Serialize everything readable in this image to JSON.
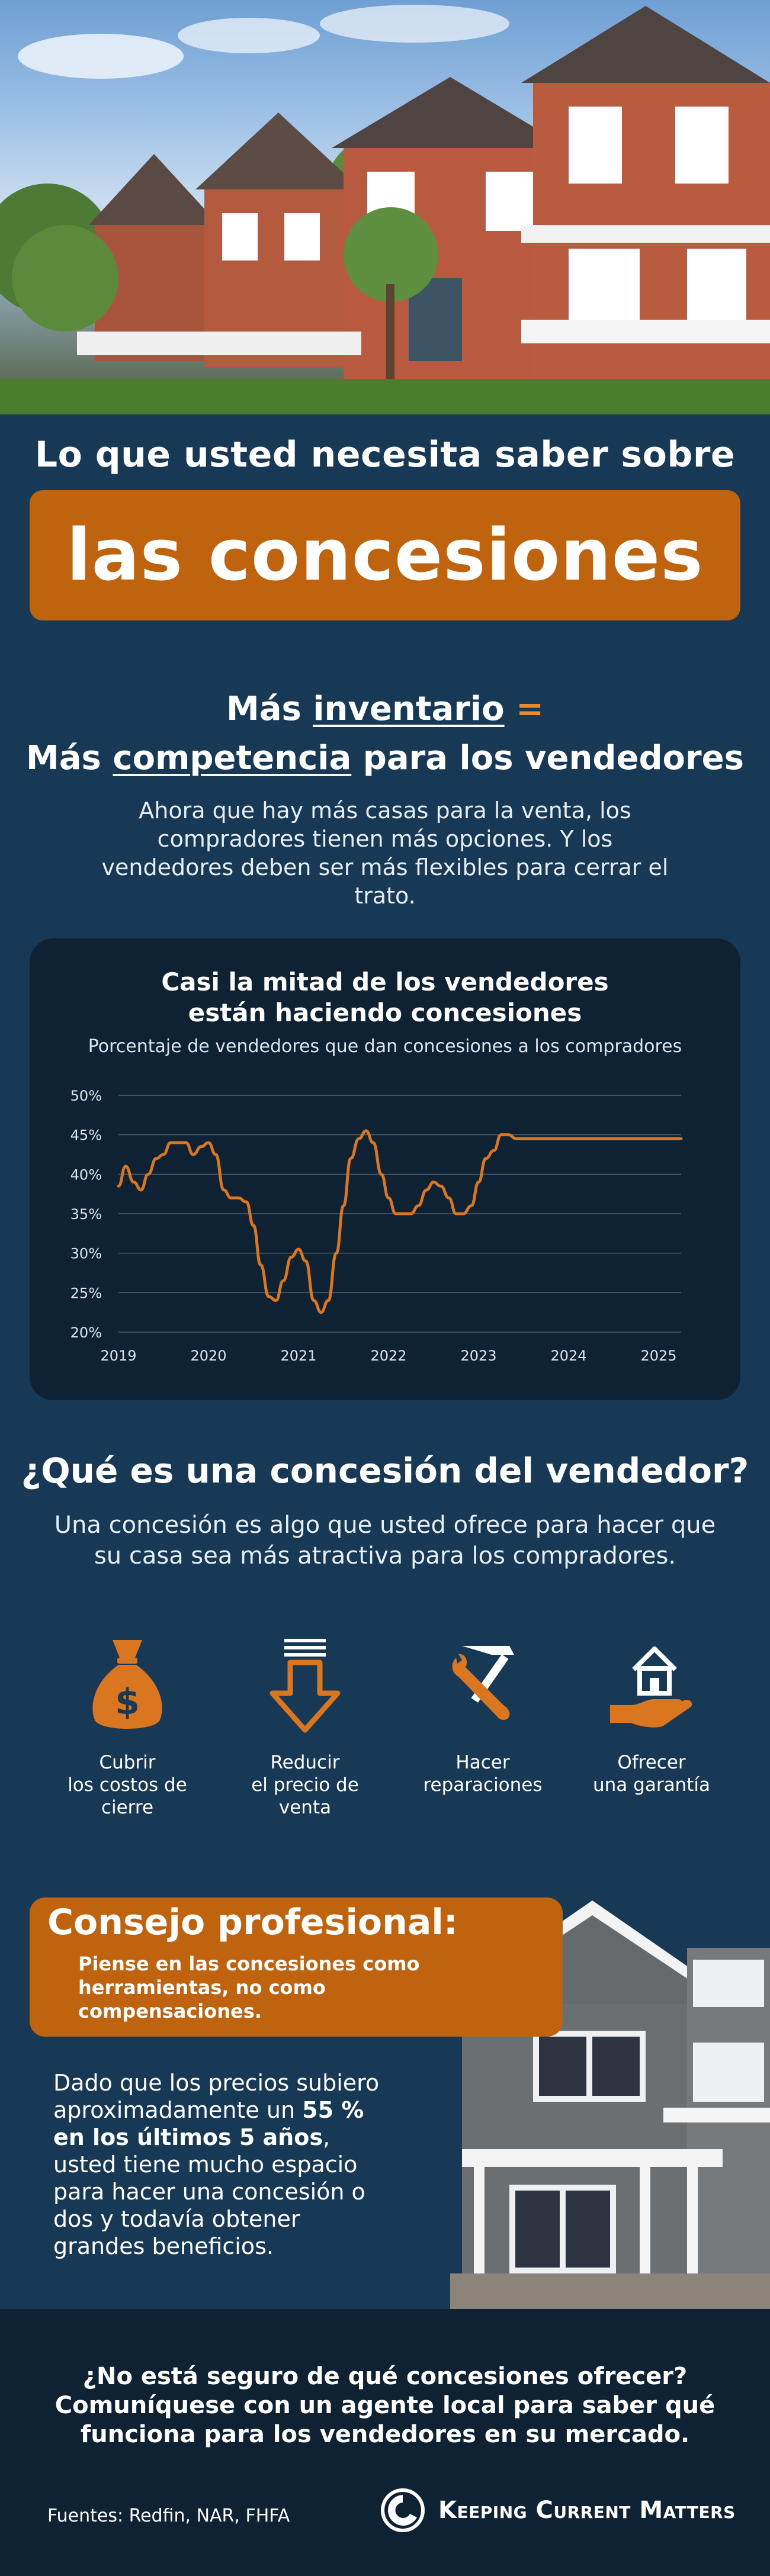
{
  "hero": {
    "title_line1": "Lo que usted necesita saber sobre",
    "title_line2": "las concesiones"
  },
  "intro": {
    "heading1_pre": "Más ",
    "heading1_u": "inventario",
    "heading1_eq": " =",
    "heading2_pre": "Más ",
    "heading2_u": "competencia",
    "heading2_post": " para los vendedores",
    "body": "Ahora que hay más casas para la venta, los compradores tienen más opciones. Y los vendedores deben ser más flexibles para cerrar el trato."
  },
  "chart_data": {
    "type": "line",
    "title": "Casi la mitad de los vendedores están haciendo concesiones",
    "title_line1": "Casi la mitad de los vendedores",
    "title_line2": "están haciendo concesiones",
    "subtitle": "Porcentaje de vendedores que dan concesiones a los compradores",
    "xlabel": "",
    "ylabel": "",
    "ylim": [
      20,
      50
    ],
    "yticks": [
      "20%",
      "25%",
      "30%",
      "35%",
      "40%",
      "45%",
      "50%"
    ],
    "xticks": [
      "2019",
      "2020",
      "2021",
      "2022",
      "2023",
      "2024",
      "2025"
    ],
    "grid": true,
    "line_color": "#d9761f",
    "series": [
      {
        "x": [
          2019.0,
          2019.08,
          2019.17,
          2019.25,
          2019.33,
          2019.42,
          2019.5,
          2019.58,
          2019.67,
          2019.75,
          2019.83,
          2019.92,
          2020.0,
          2020.08,
          2020.17,
          2020.25,
          2020.33,
          2020.42,
          2020.5,
          2020.58,
          2020.67,
          2020.75,
          2020.83,
          2020.92,
          2021.0,
          2021.08,
          2021.17,
          2021.25,
          2021.33,
          2021.42,
          2021.5,
          2021.58,
          2021.67,
          2021.75,
          2021.83,
          2021.92,
          2022.0,
          2022.08,
          2022.17,
          2022.25,
          2022.33,
          2022.42,
          2022.5,
          2022.58,
          2022.67,
          2022.75,
          2022.83,
          2022.92,
          2023.0,
          2023.08,
          2023.17,
          2023.25,
          2023.33,
          2023.42,
          2023.5,
          2023.58,
          2023.67,
          2023.75,
          2023.83,
          2023.92,
          2024.0,
          2024.08,
          2024.17,
          2024.25,
          2024.33,
          2024.42,
          2024.5,
          2024.58,
          2024.67,
          2024.75,
          2024.83,
          2024.92,
          2025.0,
          2025.08,
          2025.17,
          2025.25
        ],
        "values": [
          38.5,
          41,
          39,
          38,
          40,
          42,
          42.5,
          44,
          44,
          44,
          42.5,
          43.5,
          44,
          42.5,
          38,
          37,
          37,
          36.5,
          33.5,
          28.5,
          24.5,
          24,
          26.5,
          29.5,
          30.5,
          29,
          24,
          22.5,
          24,
          30,
          36,
          42,
          44.5,
          45.5,
          44,
          40,
          37,
          35,
          35,
          35,
          36,
          38,
          39,
          38.5,
          37,
          35,
          35,
          36,
          39,
          42,
          43,
          45,
          45,
          44.5,
          44.5,
          44.5,
          44.5,
          44.5,
          44.5,
          44.5,
          44.5,
          44.5,
          44.5,
          44.5,
          44.5,
          44.5,
          44.5,
          44.5,
          44.5,
          44.5,
          44.5,
          44.5,
          44.5,
          44.5,
          44.5,
          44.5
        ]
      }
    ]
  },
  "concession": {
    "title": "¿Qué es una concesión del vendedor?",
    "body": "Una concesión es algo que usted ofrece para hacer que su casa sea más atractiva para los compradores.",
    "items": [
      {
        "line1": "Cubrir",
        "line2": "los costos de",
        "line3": "cierre",
        "icon": "money-bag-icon"
      },
      {
        "line1": "Reducir",
        "line2": "el precio de",
        "line3": "venta",
        "icon": "down-arrow-icon"
      },
      {
        "line1": "Hacer",
        "line2": "reparaciones",
        "line3": "",
        "icon": "tools-icon"
      },
      {
        "line1": "Ofrecer",
        "line2": "una garantía",
        "line3": "",
        "icon": "house-hand-icon"
      }
    ]
  },
  "tip": {
    "heading": "Consejo profesional:",
    "sub": "Piense en las concesiones como herramientas, no como compensaciones.",
    "body_1": "Dado que los precios subiero aproximadamente un ",
    "body_bold": "55 % en los últimos 5 años",
    "body_2": ", usted tiene mucho espacio para hacer una concesión o dos y todavía obtener grandes beneficios."
  },
  "footer": {
    "question_line1": "¿No está seguro de qué concesiones ofrecer?",
    "question_line2": "Comuníquese con un agente local para saber qué",
    "question_line3": "funciona para los vendedores en su mercado.",
    "sources": "Fuentes: Redfin, NAR, FHFA",
    "brand": "Keeping Current Matters"
  },
  "colors": {
    "background": "#173955",
    "card": "#0e2233",
    "accent_orange": "#c0630e",
    "line_orange": "#d9761f",
    "text": "#ffffff"
  }
}
